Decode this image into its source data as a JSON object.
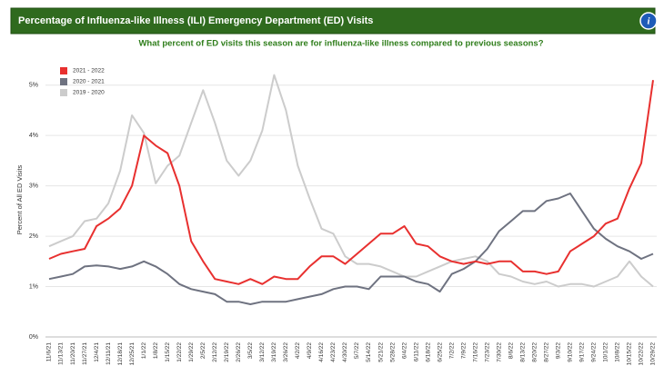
{
  "chart_data": {
    "type": "line",
    "title": "Percentage of Influenza-like Illness (ILI) Emergency Department (ED) Visits",
    "subtitle": "What percent of ED visits this season are for influenza-like illness compared to previous seasons?",
    "y_label": "Percent of All ED Visits",
    "categories": [
      "11/6/21",
      "11/13/21",
      "11/20/21",
      "11/27/21",
      "12/4/21",
      "12/11/21",
      "12/18/21",
      "12/25/21",
      "1/1/22",
      "1/8/22",
      "1/15/22",
      "1/22/22",
      "1/29/22",
      "2/5/22",
      "2/12/22",
      "2/19/22",
      "2/26/22",
      "3/5/22",
      "3/12/22",
      "3/19/22",
      "3/26/22",
      "4/2/22",
      "4/9/22",
      "4/16/22",
      "4/23/22",
      "4/30/22",
      "5/7/22",
      "5/14/22",
      "5/21/22",
      "5/28/22",
      "6/4/22",
      "6/11/22",
      "6/18/22",
      "6/25/22",
      "7/2/22",
      "7/9/22",
      "7/16/22",
      "7/23/22",
      "7/30/22",
      "8/6/22",
      "8/13/22",
      "8/20/22",
      "8/27/22",
      "9/3/22",
      "9/10/22",
      "9/17/22",
      "9/24/22",
      "10/1/22",
      "10/8/22",
      "10/15/22",
      "10/22/22",
      "10/29/22"
    ],
    "series": [
      {
        "name": "2021 - 2022",
        "color": "#e8302f",
        "values": [
          1.55,
          1.65,
          1.7,
          1.75,
          2.2,
          2.35,
          2.55,
          3.0,
          4.0,
          3.8,
          3.65,
          3.0,
          1.9,
          1.5,
          1.15,
          1.1,
          1.05,
          1.15,
          1.05,
          1.2,
          1.15,
          1.15,
          1.4,
          1.6,
          1.6,
          1.45,
          1.65,
          1.85,
          2.05,
          2.05,
          2.2,
          1.85,
          1.8,
          1.6,
          1.5,
          1.45,
          1.5,
          1.45,
          1.5,
          1.5,
          1.3,
          1.3,
          1.25,
          1.3,
          1.7,
          1.85,
          2.0,
          2.25,
          2.35,
          2.95,
          3.45,
          5.1
        ]
      },
      {
        "name": "2020 - 2021",
        "color": "#6e7280",
        "values": [
          1.15,
          1.2,
          1.25,
          1.4,
          1.42,
          1.4,
          1.35,
          1.4,
          1.5,
          1.4,
          1.25,
          1.05,
          0.95,
          0.9,
          0.85,
          0.7,
          0.7,
          0.65,
          0.7,
          0.7,
          0.7,
          0.75,
          0.8,
          0.85,
          0.95,
          1.0,
          1.0,
          0.95,
          1.2,
          1.2,
          1.2,
          1.1,
          1.05,
          0.9,
          1.25,
          1.35,
          1.5,
          1.75,
          2.1,
          2.3,
          2.5,
          2.5,
          2.7,
          2.75,
          2.85,
          2.5,
          2.15,
          1.95,
          1.8,
          1.7,
          1.55,
          1.65
        ]
      },
      {
        "name": "2019 - 2020",
        "color": "#cccccc",
        "values": [
          1.8,
          1.9,
          2.0,
          2.3,
          2.35,
          2.65,
          3.3,
          4.4,
          4.05,
          3.05,
          3.4,
          3.6,
          4.25,
          4.9,
          4.25,
          3.5,
          3.2,
          3.5,
          4.1,
          5.2,
          4.5,
          3.4,
          2.75,
          2.15,
          2.05,
          1.6,
          1.45,
          1.45,
          1.4,
          1.3,
          1.2,
          1.2,
          1.3,
          1.4,
          1.5,
          1.55,
          1.6,
          1.5,
          1.25,
          1.2,
          1.1,
          1.05,
          1.1,
          1.0,
          1.05,
          1.05,
          1.0,
          1.1,
          1.2,
          1.5,
          1.2,
          1.0
        ]
      }
    ],
    "ylim": [
      0,
      5.5
    ],
    "yticks": [
      {
        "value": 0,
        "label": "0%"
      },
      {
        "value": 1,
        "label": "1%"
      },
      {
        "value": 2,
        "label": "2%"
      },
      {
        "value": 3,
        "label": "3%"
      },
      {
        "value": 4,
        "label": "4%"
      },
      {
        "value": 5,
        "label": "5%"
      }
    ],
    "grid": true,
    "legend": "top-left"
  }
}
